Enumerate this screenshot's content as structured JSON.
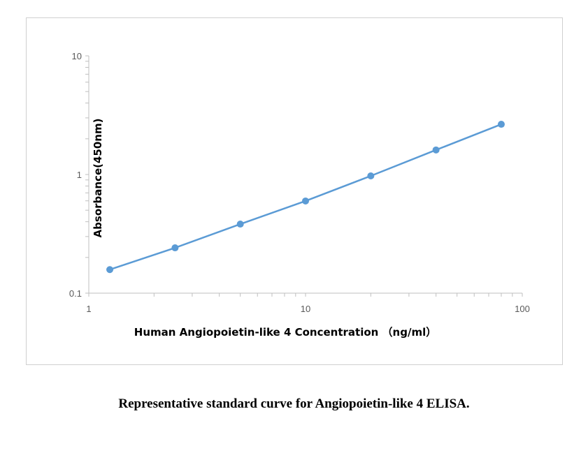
{
  "chart_data": {
    "type": "line",
    "title": "",
    "xlabel": "Human Angiopoietin-like  4 Concentration  （ng/ml）",
    "ylabel": "Absorbance(450nm)",
    "x_scale": "log",
    "y_scale": "log",
    "xlim": [
      1,
      100
    ],
    "ylim": [
      0.1,
      10
    ],
    "x_ticks": [
      "1",
      "10",
      "100"
    ],
    "y_ticks": [
      "0.1",
      "1",
      "10"
    ],
    "grid": false,
    "legend": "none",
    "series": [
      {
        "x": [
          1.25,
          2.5,
          5,
          10,
          20,
          40,
          80
        ],
        "y": [
          0.158,
          0.241,
          0.382,
          0.598,
          0.973,
          1.61,
          2.65
        ],
        "color": "#5b9bd5",
        "marker": "circle"
      }
    ]
  },
  "caption": "Representative standard curve for Angiopoietin-like 4 ELISA."
}
